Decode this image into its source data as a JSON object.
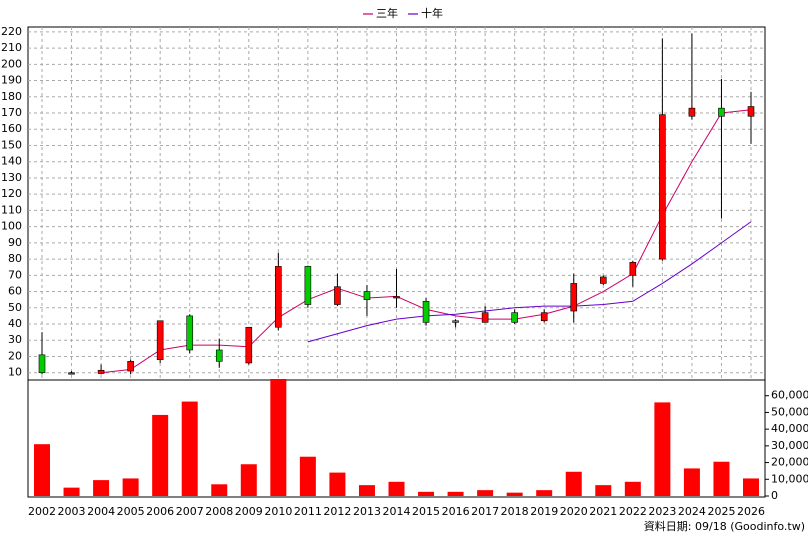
{
  "chart_data": [
    {
      "type": "candlestick",
      "open": [
        21,
        10,
        9.5,
        11,
        18,
        45,
        24,
        16,
        38,
        75.5,
        52,
        60,
        56,
        54,
        42,
        41,
        47,
        42,
        48,
        65,
        70,
        80,
        168,
        173,
        168
      ],
      "high": [
        35,
        11,
        15,
        18,
        42,
        46,
        31,
        38,
        84,
        76,
        71,
        64,
        74,
        56,
        43,
        51,
        49,
        49,
        71,
        70,
        79,
        216,
        219,
        191,
        183
      ],
      "low": [
        9,
        9,
        9,
        9,
        16,
        22,
        13,
        15,
        36,
        50,
        51,
        45,
        50,
        39,
        38,
        41,
        40,
        41,
        41,
        64,
        63,
        79,
        166,
        105,
        151
      ],
      "close": [
        10,
        10,
        11.5,
        17,
        42,
        24,
        17,
        38,
        75.5,
        52,
        63,
        55,
        57,
        41,
        41,
        47,
        41,
        47,
        65,
        69,
        78,
        169,
        173,
        168,
        174
      ],
      "up_color": "#ff0000",
      "down_color": "#00cc00",
      "series": [
        {
          "name": "三年",
          "color": "#cc0066",
          "values": [
            null,
            null,
            10,
            12,
            24,
            27,
            27,
            26,
            44,
            55,
            62,
            56,
            57,
            49,
            45,
            43,
            43,
            46,
            51,
            60,
            71,
            107,
            140,
            170,
            172
          ]
        },
        {
          "name": "十年",
          "color": "#6600cc",
          "values": [
            null,
            null,
            null,
            null,
            null,
            null,
            null,
            null,
            null,
            29,
            34,
            39,
            43,
            45,
            46,
            48,
            50,
            51,
            51,
            52,
            54,
            65,
            77,
            90,
            103
          ]
        }
      ],
      "ylim": [
        5.5,
        223
      ],
      "yticks": [
        10,
        20,
        30,
        40,
        50,
        60,
        70,
        80,
        90,
        100,
        110,
        120,
        130,
        140,
        150,
        160,
        170,
        180,
        190,
        200,
        210,
        220
      ],
      "grid": true
    },
    {
      "type": "bar",
      "categories": [
        "2002",
        "2003",
        "2004",
        "2005",
        "2006",
        "2007",
        "2008",
        "2009",
        "2010",
        "2011",
        "2012",
        "2013",
        "2014",
        "2015",
        "2016",
        "2017",
        "2018",
        "2019",
        "2020",
        "2021",
        "2022",
        "2023",
        "2024",
        "2025",
        "2026"
      ],
      "values": [
        31000,
        5000,
        9500,
        10500,
        48500,
        56500,
        7000,
        19000,
        70000,
        23500,
        14000,
        6500,
        8500,
        2500,
        2500,
        3500,
        2000,
        3500,
        14500,
        6500,
        8500,
        56000,
        16500,
        20500,
        10500
      ],
      "color": "#ff0000",
      "ylim": [
        0,
        70000
      ],
      "yticks": [
        0,
        {
          "value": 10000,
          "label": "10,000"
        },
        {
          "value": 20000,
          "label": "20,000"
        },
        {
          "value": 30000,
          "label": "30,000"
        },
        {
          "value": 40000,
          "label": "40,000"
        },
        {
          "value": 50000,
          "label": "50,000"
        },
        {
          "value": 60000,
          "label": "60,000"
        }
      ],
      "grid": false
    }
  ],
  "footer": "資料日期: 09/18  (Goodinfo.tw)"
}
